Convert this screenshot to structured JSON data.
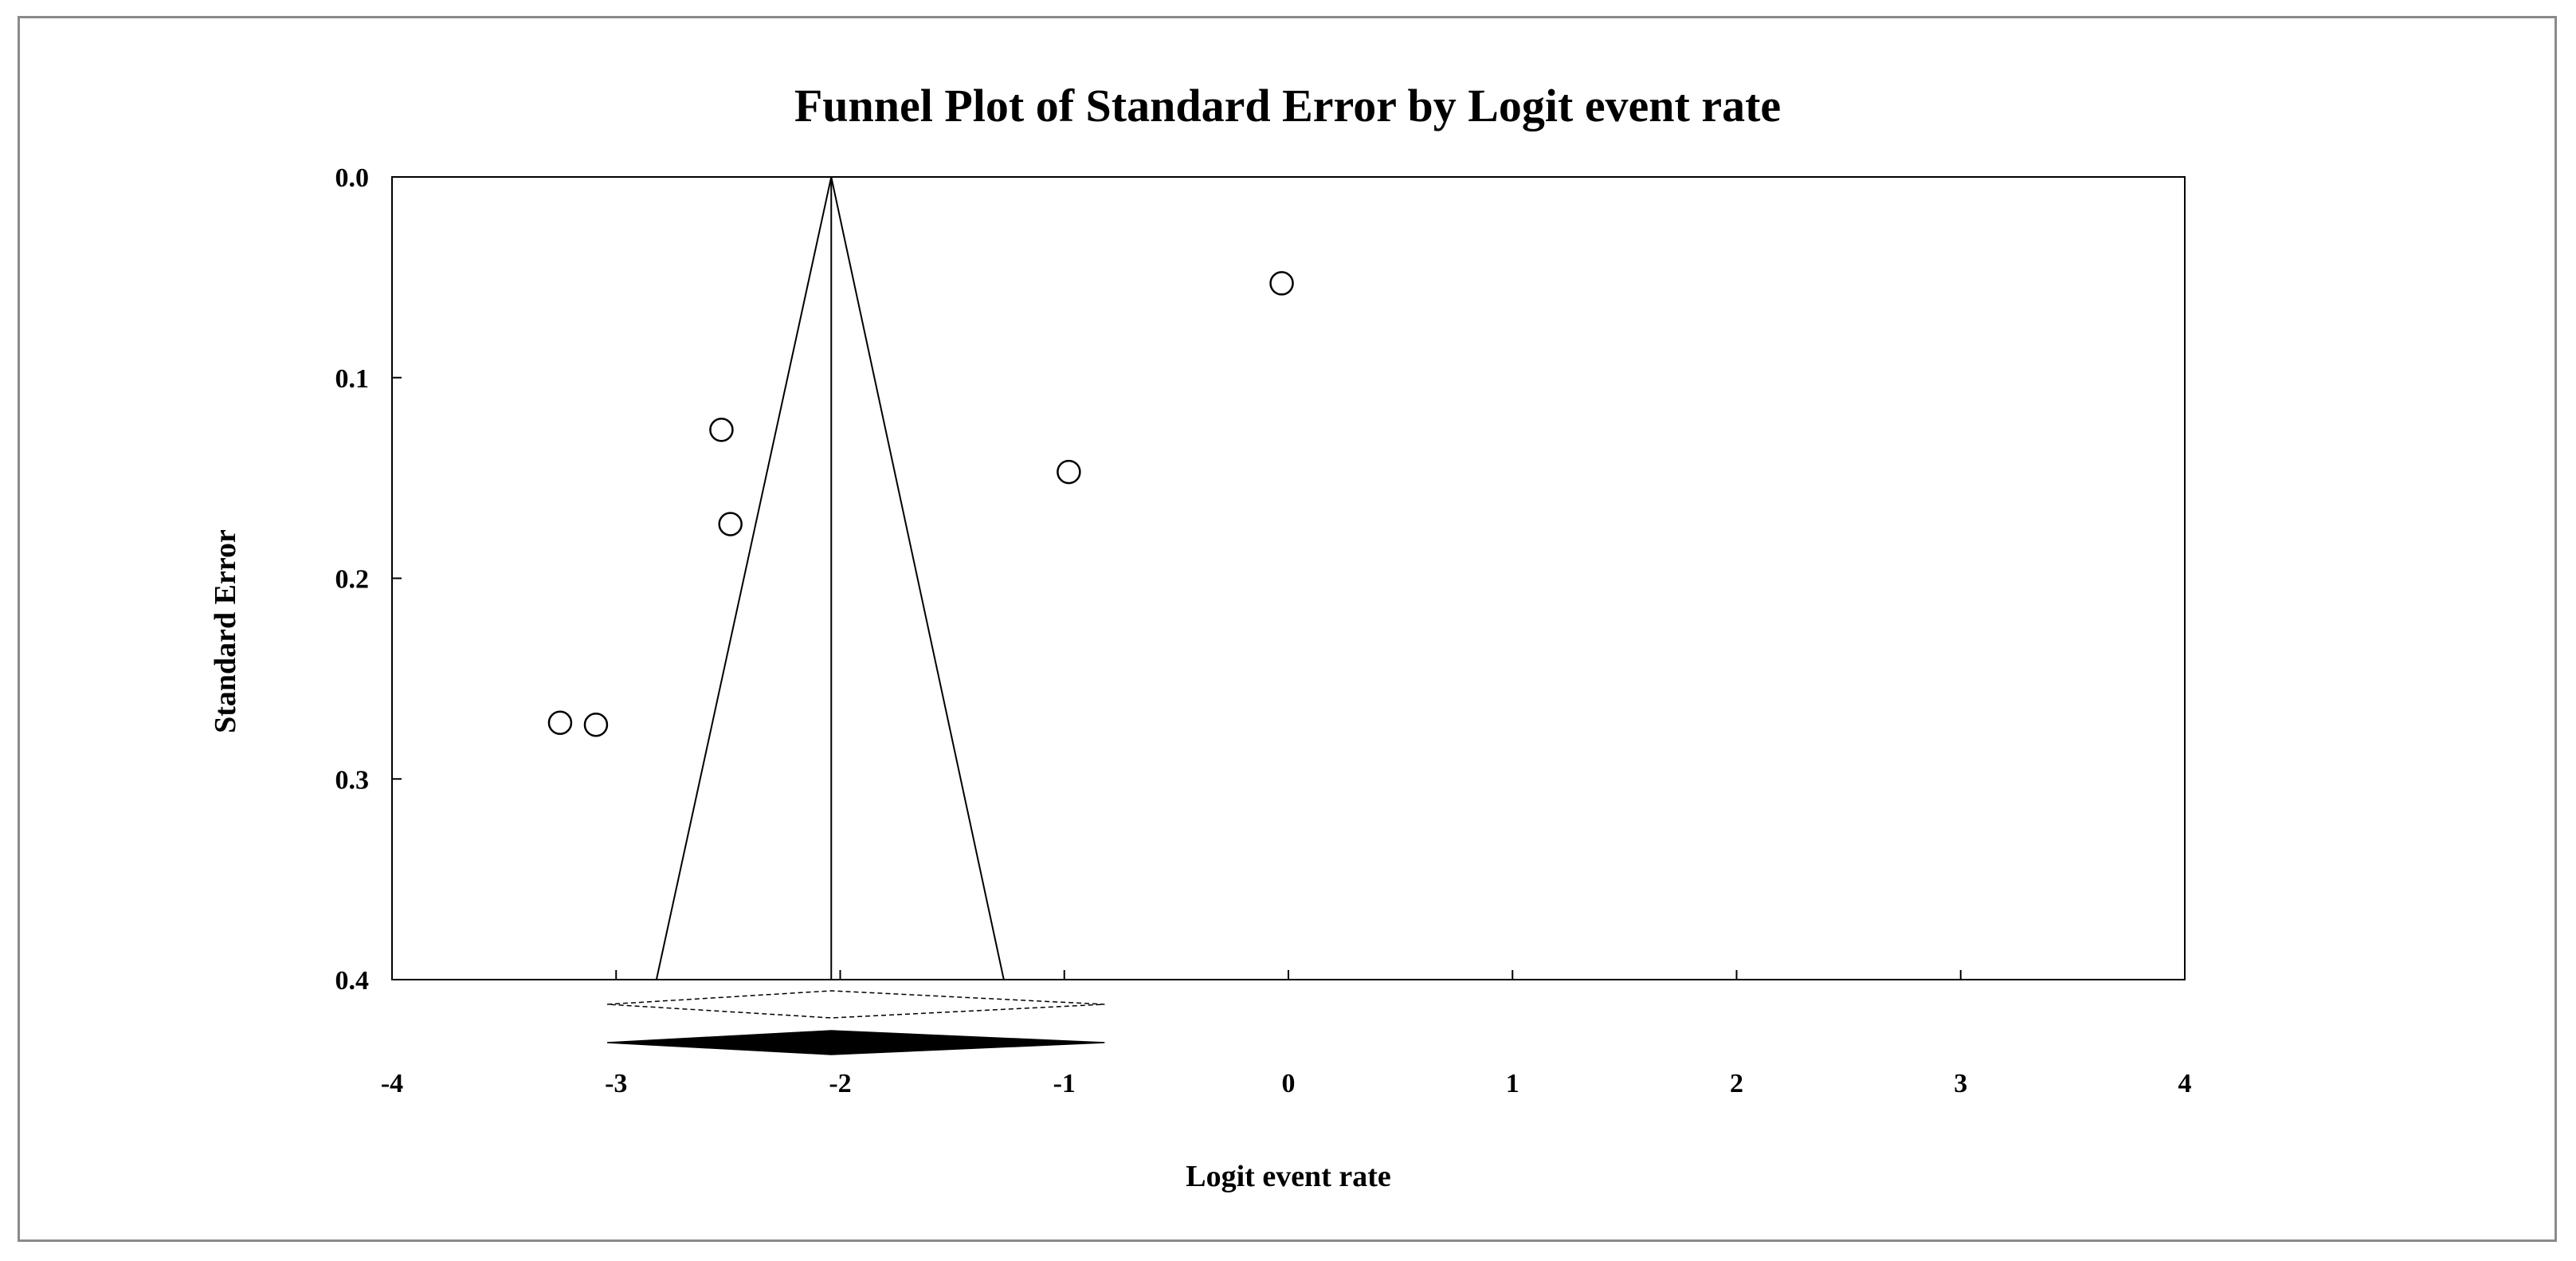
{
  "chart_data": {
    "type": "scatter",
    "subtype": "funnel",
    "title": "Funnel Plot of Standard Error by Logit event rate",
    "xlabel": "Logit event rate",
    "ylabel": "Standard Error",
    "xlim": [
      -4,
      4
    ],
    "ylim": [
      0.0,
      0.4
    ],
    "y_inverted": true,
    "x_ticks": [
      "-4",
      "-3",
      "-2",
      "-1",
      "0",
      "1",
      "2",
      "3",
      "4"
    ],
    "y_ticks": [
      "0.0",
      "0.1",
      "0.2",
      "0.3",
      "0.4"
    ],
    "grid": false,
    "legend": "none",
    "points": [
      {
        "x": -0.03,
        "y": 0.053
      },
      {
        "x": -2.53,
        "y": 0.126
      },
      {
        "x": -0.98,
        "y": 0.147
      },
      {
        "x": -2.49,
        "y": 0.173
      },
      {
        "x": -3.25,
        "y": 0.272
      },
      {
        "x": -3.09,
        "y": 0.273
      }
    ],
    "summary_effect": -2.04,
    "funnel_bottom": [
      -2.82,
      -1.27
    ],
    "diamond_open": {
      "center": -2.04,
      "lower": -3.04,
      "upper": -0.82
    },
    "diamond_filled": {
      "center": -2.04,
      "lower": -3.04,
      "upper": -0.82
    },
    "colors": {
      "axis": "#000000",
      "frame": "#8a8a8a",
      "marker_fill": "#ffffff",
      "diamond_fill": "#000000"
    }
  }
}
